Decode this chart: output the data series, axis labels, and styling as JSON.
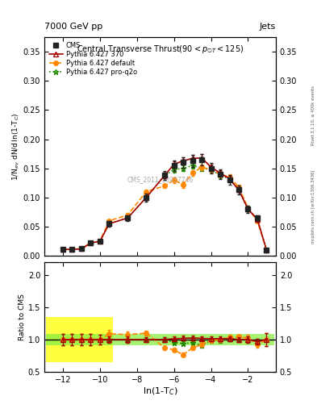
{
  "top_left_label": "7000 GeV pp",
  "top_right_label": "Jets",
  "ylabel_main": "1/N$_{ev}$ dN/d$\\,$ln(1-T$_C$)",
  "ylabel_ratio": "Ratio to CMS",
  "xlabel": "ln(1-T$_C$)",
  "watermark": "CMS_2011_S8957746",
  "rivet_label": "Rivet 3.1.10, ≥ 400k events",
  "arxiv_label": "mcplots.cern.ch [arXiv:1306.3436]",
  "x_data": [
    -12.0,
    -11.5,
    -11.0,
    -10.5,
    -10.0,
    -9.5,
    -8.5,
    -7.5,
    -6.5,
    -6.0,
    -5.5,
    -5.0,
    -4.5,
    -4.0,
    -3.5,
    -3.0,
    -2.5,
    -2.0,
    -1.5,
    -1.0
  ],
  "cms_y": [
    0.011,
    0.011,
    0.012,
    0.022,
    0.025,
    0.055,
    0.065,
    0.1,
    0.138,
    0.155,
    0.16,
    0.163,
    0.165,
    0.15,
    0.14,
    0.13,
    0.113,
    0.08,
    0.065,
    0.01
  ],
  "cms_yerr": [
    0.002,
    0.002,
    0.002,
    0.003,
    0.003,
    0.005,
    0.005,
    0.007,
    0.008,
    0.009,
    0.009,
    0.01,
    0.01,
    0.009,
    0.008,
    0.008,
    0.007,
    0.006,
    0.005,
    0.002
  ],
  "p370_y": [
    0.011,
    0.011,
    0.012,
    0.022,
    0.025,
    0.055,
    0.065,
    0.1,
    0.138,
    0.157,
    0.163,
    0.167,
    0.168,
    0.152,
    0.142,
    0.132,
    0.113,
    0.08,
    0.063,
    0.01
  ],
  "p370_yerr": [
    0.001,
    0.001,
    0.001,
    0.002,
    0.002,
    0.003,
    0.003,
    0.004,
    0.005,
    0.005,
    0.006,
    0.006,
    0.006,
    0.005,
    0.005,
    0.005,
    0.004,
    0.004,
    0.003,
    0.001
  ],
  "pdef_y": [
    0.011,
    0.011,
    0.012,
    0.022,
    0.025,
    0.06,
    0.07,
    0.11,
    0.12,
    0.13,
    0.122,
    0.142,
    0.152,
    0.148,
    0.14,
    0.135,
    0.118,
    0.082,
    0.06,
    0.01
  ],
  "pdef_yerr": [
    0.001,
    0.001,
    0.001,
    0.002,
    0.002,
    0.003,
    0.003,
    0.004,
    0.004,
    0.005,
    0.005,
    0.005,
    0.005,
    0.005,
    0.005,
    0.005,
    0.004,
    0.004,
    0.003,
    0.001
  ],
  "pq2o_y": [
    0.011,
    0.011,
    0.012,
    0.022,
    0.025,
    0.055,
    0.065,
    0.1,
    0.138,
    0.148,
    0.15,
    0.155,
    0.15,
    0.148,
    0.138,
    0.132,
    0.113,
    0.08,
    0.063,
    0.01
  ],
  "pq2o_yerr": [
    0.001,
    0.001,
    0.001,
    0.002,
    0.002,
    0.003,
    0.003,
    0.004,
    0.005,
    0.005,
    0.005,
    0.005,
    0.005,
    0.005,
    0.005,
    0.005,
    0.004,
    0.004,
    0.003,
    0.001
  ],
  "ratio_p370": [
    1.0,
    1.0,
    1.0,
    1.0,
    1.0,
    1.0,
    1.0,
    1.0,
    1.0,
    1.013,
    1.019,
    1.025,
    1.018,
    1.013,
    1.014,
    1.015,
    1.0,
    1.0,
    0.969,
    1.0
  ],
  "ratio_pdef": [
    1.0,
    1.0,
    1.0,
    1.0,
    1.0,
    1.09,
    1.077,
    1.1,
    0.87,
    0.839,
    0.763,
    0.871,
    0.921,
    0.987,
    1.0,
    1.038,
    1.044,
    1.025,
    0.923,
    1.0
  ],
  "ratio_pq2o": [
    1.0,
    1.0,
    1.0,
    1.0,
    1.0,
    1.0,
    1.0,
    1.0,
    1.0,
    0.955,
    0.938,
    0.951,
    0.909,
    0.987,
    0.986,
    1.015,
    1.0,
    1.0,
    0.969,
    1.0
  ],
  "cms_color": "#222222",
  "p370_color": "#aa0000",
  "pdef_color": "#ff8800",
  "pq2o_color": "#228800",
  "bg_color": "#ffffff",
  "ylim_main": [
    0.0,
    0.375
  ],
  "ylim_ratio": [
    0.5,
    2.2
  ],
  "xlim": [
    -13.0,
    -0.5
  ],
  "yticks_main": [
    0.0,
    0.05,
    0.1,
    0.15,
    0.2,
    0.25,
    0.3,
    0.35
  ],
  "yticks_ratio": [
    0.5,
    1.0,
    1.5,
    2.0
  ],
  "xticks": [
    -12,
    -10,
    -8,
    -6,
    -4,
    -2
  ],
  "yellow_xmin": -12.9,
  "yellow_xmax": -9.3,
  "yellow_ymin": 0.65,
  "yellow_ymax": 1.35,
  "green_xmin": -12.9,
  "green_xmax": -0.6,
  "green_ymin": 0.91,
  "green_ymax": 1.09
}
